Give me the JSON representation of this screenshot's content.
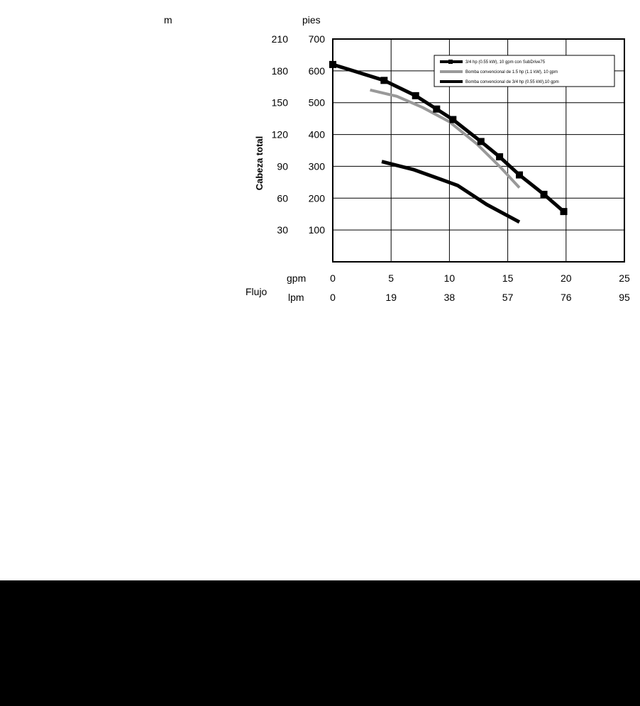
{
  "chart_data": {
    "type": "line",
    "title": "",
    "ylabel": "Cabeza total",
    "xlabel": "Flujo",
    "x_units": {
      "primary": "gpm",
      "secondary": "lpm"
    },
    "y_units": {
      "primary": "pies",
      "secondary": "m"
    },
    "xlim": [
      0,
      25
    ],
    "ylim": [
      0,
      700
    ],
    "x_ticks": [
      0,
      5,
      10,
      15,
      20,
      25
    ],
    "x_ticks_secondary": [
      "0",
      "19",
      "38",
      "57",
      "76",
      "95"
    ],
    "y_ticks": [
      100,
      200,
      300,
      400,
      500,
      600,
      700
    ],
    "y_ticks_secondary": [
      "30",
      "60",
      "90",
      "120",
      "150",
      "180",
      "210"
    ],
    "grid": true,
    "legend_position": "top-right",
    "series": [
      {
        "name": "3/4 hp (0.55 kW), 10 gpm con SubDrive75",
        "color": "#000000",
        "markers": true,
        "x": [
          0,
          4.4,
          7.1,
          8.9,
          10.3,
          12.7,
          14.3,
          16,
          18.1,
          19.8
        ],
        "y": [
          620,
          570,
          522,
          480,
          447,
          378,
          330,
          273,
          212,
          158
        ]
      },
      {
        "name": "Bomba convencional de 1.5 hp (1.1 kW), 10 gpm",
        "color": "#999999",
        "markers": false,
        "x": [
          3.2,
          5.5,
          7.7,
          10,
          12.3,
          14.3,
          16
        ],
        "y": [
          540,
          520,
          485,
          440,
          372,
          300,
          233
        ]
      },
      {
        "name": "Bomba convencional de 3/4 hp (0.55 kW),10 gpm",
        "color": "#000000",
        "markers": false,
        "x": [
          4.2,
          6.9,
          9.2,
          10.7,
          13.2,
          16
        ],
        "y": [
          315,
          290,
          260,
          240,
          180,
          125
        ]
      }
    ]
  }
}
